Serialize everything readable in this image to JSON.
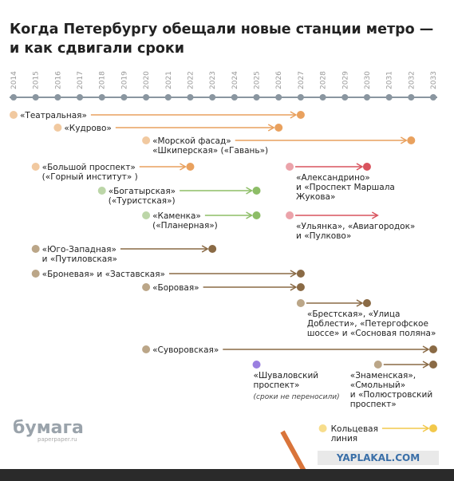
{
  "title": [
    "Когда Петербургу обещали новые станции метро —",
    "и как сдвигали сроки"
  ],
  "years": [
    "2014",
    "2015",
    "2016",
    "2017",
    "2018",
    "2019",
    "2020",
    "2021",
    "2022",
    "2023",
    "2024",
    "2025",
    "2026",
    "2027",
    "2028",
    "2029",
    "2030",
    "2031",
    "2032",
    "2033"
  ],
  "year_values": [
    2014,
    2015,
    2016,
    2017,
    2018,
    2019,
    2020,
    2021,
    2022,
    2023,
    2024,
    2025,
    2026,
    2027,
    2028,
    2029,
    2030,
    2031,
    2032,
    2033
  ],
  "items": [
    {
      "label": [
        "«Театральная»"
      ],
      "start": 2014,
      "end": 2027,
      "color": "#e9a15e",
      "start_color": "#f1c9a0"
    },
    {
      "label": [
        "«Кудрово»"
      ],
      "start": 2016,
      "end": 2026,
      "color": "#e9a15e",
      "start_color": "#f1c9a0"
    },
    {
      "label": [
        "«Морской фасад»",
        "«Шкиперская» («Гавань»)"
      ],
      "start": 2020,
      "end": 2032,
      "color": "#e9a15e",
      "start_color": "#f1c9a0"
    },
    {
      "label": [
        "«Большой проспект»",
        "(«Горный институт» )"
      ],
      "start": 2015,
      "end": 2022,
      "color": "#e9a15e",
      "start_color": "#f1c9a0"
    },
    {
      "label": [
        "«Александрино»",
        "и «Проспект Маршала",
        "Жукова»"
      ],
      "start": 2026.5,
      "end": 2030,
      "color": "#d9545e",
      "start_color": "#eba3aa"
    },
    {
      "label": [
        "«Богатырская»",
        "(«Туристская»)"
      ],
      "start": 2018,
      "end": 2025,
      "color": "#8dbd67",
      "start_color": "#bcd6a8"
    },
    {
      "label": [
        "«Каменка»",
        "(«Планерная»)"
      ],
      "start": 2020,
      "end": 2025,
      "color": "#8dbd67",
      "start_color": "#bcd6a8"
    },
    {
      "label": [
        "«Ульянка», «Авиагородок»",
        "и «Пулково»"
      ],
      "start": 2026.5,
      "end": 2030.7,
      "color": "#d9545e",
      "start_color": "#eba3aa"
    },
    {
      "label": [
        "«Юго-Западная»",
        "и «Путиловская»"
      ],
      "start": 2015,
      "end": 2023,
      "color": "#8a6a45",
      "start_color": "#bba688"
    },
    {
      "label": [
        "«Броневая» и «Заставская»"
      ],
      "start": 2015,
      "end": 2027,
      "color": "#8a6a45",
      "start_color": "#bba688"
    },
    {
      "label": [
        "«Боровая»"
      ],
      "start": 2020,
      "end": 2027,
      "color": "#8a6a45",
      "start_color": "#bba688"
    },
    {
      "label": [
        "«Брестская», «Улица",
        "Доблести», «Петергофское",
        "шоссе» и «Сосновая поляна»"
      ],
      "start": 2027,
      "end": 2030,
      "color": "#8a6a45",
      "start_color": "#bba688"
    },
    {
      "label": [
        "«Суворовская»"
      ],
      "start": 2020,
      "end": 2033,
      "color": "#8a6a45",
      "start_color": "#bba688"
    },
    {
      "label": [
        "«Шуваловский",
        "проспект»"
      ],
      "note": "(сроки не переносили)",
      "start": 2025,
      "end": null,
      "color": "#9a7fe0",
      "start_color": "#9a7fe0"
    },
    {
      "label": [
        "«Знаменская»,",
        "«Смольный»",
        "и «Полюстровский",
        "проспект»"
      ],
      "start": 2030.5,
      "end": 2033,
      "color": "#8a6a45",
      "start_color": "#bba688"
    },
    {
      "label": [
        "Кольцевая",
        "линия"
      ],
      "start": 2028,
      "end": 2033,
      "color": "#f2c84b",
      "start_color": "#f7dd8c"
    }
  ],
  "logo": "бумага",
  "logo_url": "paperpaper.ru",
  "watermark": "YAPLAKAL.COM"
}
